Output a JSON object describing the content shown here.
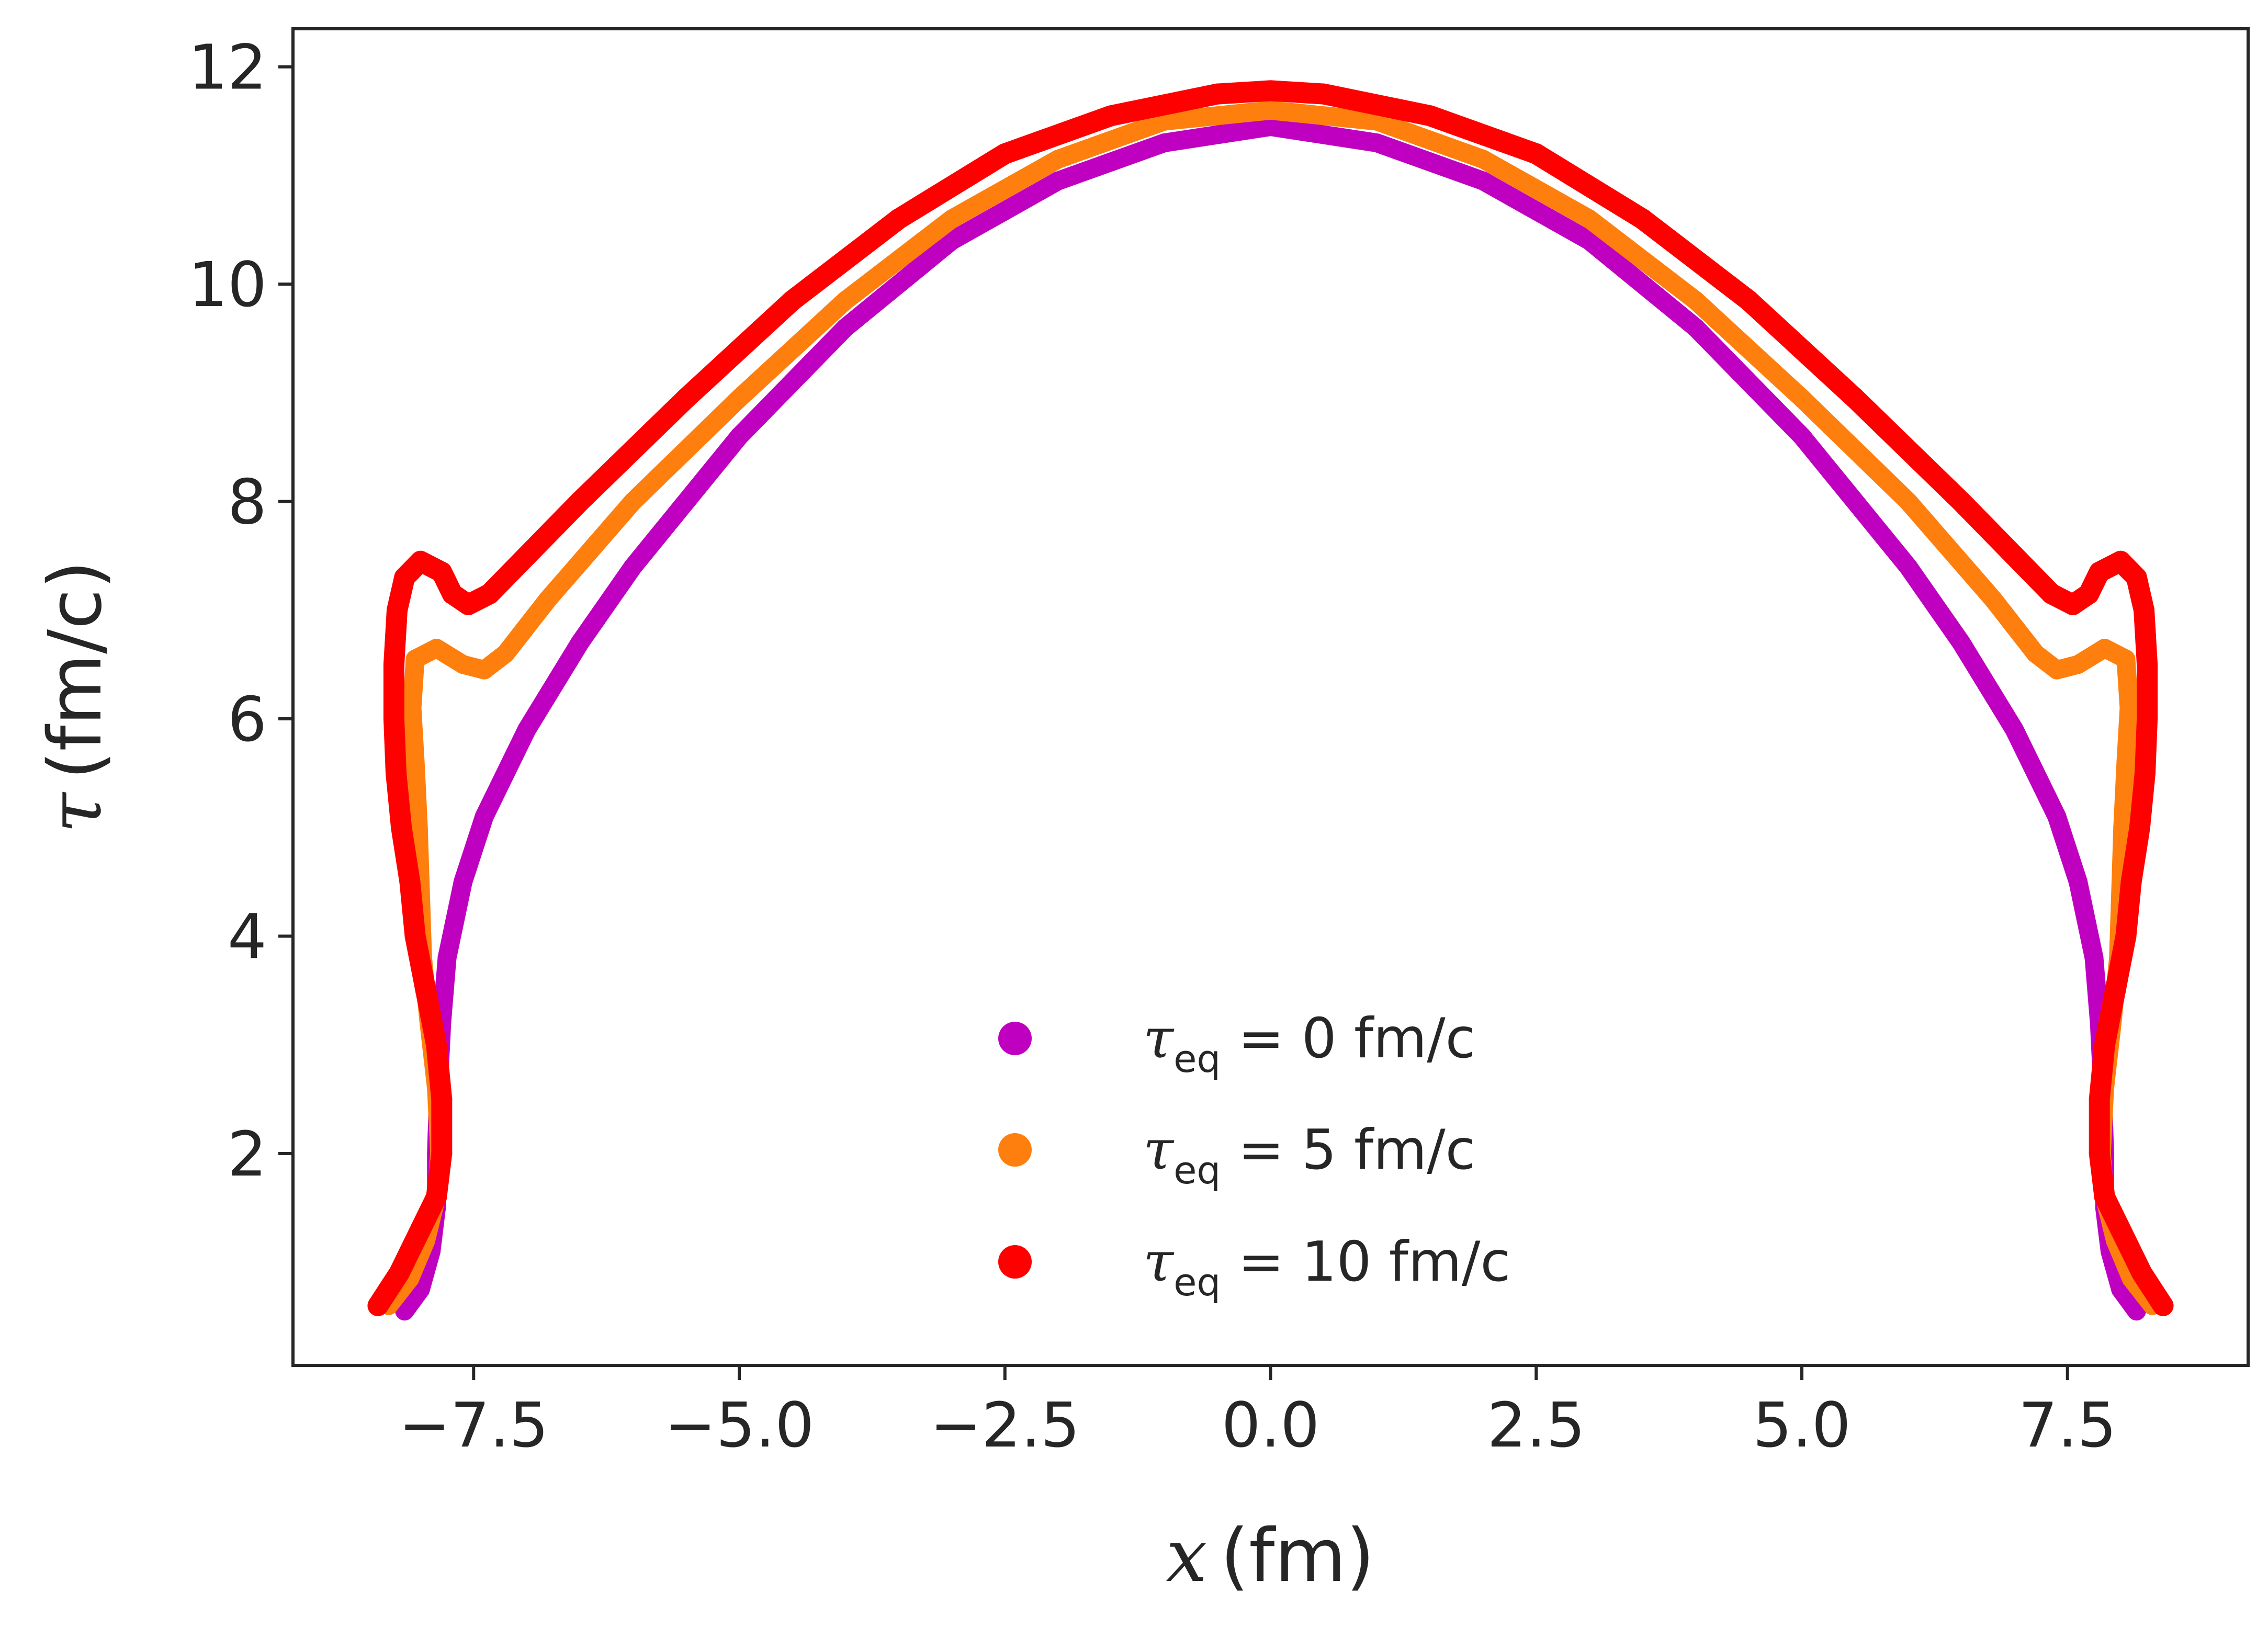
{
  "chart_data": {
    "type": "scatter",
    "title": "",
    "xlabel": {
      "symbol": "x",
      "unit": "(fm)"
    },
    "ylabel": {
      "symbol": "τ",
      "unit": "(fm/c)"
    },
    "xlim": [
      -9.2,
      9.2
    ],
    "ylim": [
      0.05,
      12.35
    ],
    "xticks": [
      -7.5,
      -5.0,
      -2.5,
      0.0,
      2.5,
      5.0,
      7.5
    ],
    "xtick_labels": [
      "−7.5",
      "−5.0",
      "−2.5",
      "0.0",
      "2.5",
      "5.0",
      "7.5"
    ],
    "yticks": [
      2,
      4,
      6,
      8,
      10,
      12
    ],
    "ytick_labels": [
      "2",
      "4",
      "6",
      "8",
      "10",
      "12"
    ],
    "grid": false,
    "legend_position": "bottom-center",
    "series": [
      {
        "name": "τeq = 0 fm/c",
        "legend_symbol": "τ",
        "legend_sub": "eq",
        "legend_rest": " = 0 fm/c",
        "color": "#c000c0",
        "points": [
          [
            -8.15,
            0.55
          ],
          [
            -8.0,
            0.75
          ],
          [
            -7.9,
            1.1
          ],
          [
            -7.85,
            1.5
          ],
          [
            -7.85,
            2.0
          ],
          [
            -7.83,
            2.6
          ],
          [
            -7.8,
            3.2
          ],
          [
            -7.75,
            3.8
          ],
          [
            -7.6,
            4.5
          ],
          [
            -7.4,
            5.1
          ],
          [
            -7.0,
            5.9
          ],
          [
            -6.5,
            6.7
          ],
          [
            -6.0,
            7.4
          ],
          [
            -5.0,
            8.6
          ],
          [
            -4.0,
            9.6
          ],
          [
            -3.0,
            10.4
          ],
          [
            -2.0,
            10.95
          ],
          [
            -1.0,
            11.3
          ],
          [
            0.0,
            11.45
          ],
          [
            1.0,
            11.3
          ],
          [
            2.0,
            10.95
          ],
          [
            3.0,
            10.4
          ],
          [
            4.0,
            9.6
          ],
          [
            5.0,
            8.6
          ],
          [
            6.0,
            7.4
          ],
          [
            6.5,
            6.7
          ],
          [
            7.0,
            5.9
          ],
          [
            7.4,
            5.1
          ],
          [
            7.6,
            4.5
          ],
          [
            7.75,
            3.8
          ],
          [
            7.8,
            3.2
          ],
          [
            7.83,
            2.6
          ],
          [
            7.85,
            2.0
          ],
          [
            7.85,
            1.5
          ],
          [
            7.9,
            1.1
          ],
          [
            8.0,
            0.75
          ],
          [
            8.15,
            0.55
          ]
        ]
      },
      {
        "name": "τeq = 5 fm/c",
        "legend_symbol": "τ",
        "legend_sub": "eq",
        "legend_rest": " = 5 fm/c",
        "color": "#ff7f0e",
        "points": [
          [
            -8.3,
            0.6
          ],
          [
            -8.1,
            0.85
          ],
          [
            -7.95,
            1.2
          ],
          [
            -7.85,
            1.6
          ],
          [
            -7.82,
            2.0
          ],
          [
            -7.85,
            2.6
          ],
          [
            -7.92,
            3.2
          ],
          [
            -7.98,
            3.8
          ],
          [
            -8.0,
            4.4
          ],
          [
            -8.02,
            5.0
          ],
          [
            -8.05,
            5.6
          ],
          [
            -8.08,
            6.1
          ],
          [
            -8.05,
            6.55
          ],
          [
            -7.85,
            6.65
          ],
          [
            -7.6,
            6.5
          ],
          [
            -7.4,
            6.45
          ],
          [
            -7.2,
            6.6
          ],
          [
            -6.8,
            7.1
          ],
          [
            -6.0,
            8.0
          ],
          [
            -5.0,
            8.95
          ],
          [
            -4.0,
            9.85
          ],
          [
            -3.0,
            10.6
          ],
          [
            -2.0,
            11.15
          ],
          [
            -1.0,
            11.5
          ],
          [
            0.0,
            11.6
          ],
          [
            1.0,
            11.5
          ],
          [
            2.0,
            11.15
          ],
          [
            3.0,
            10.6
          ],
          [
            4.0,
            9.85
          ],
          [
            5.0,
            8.95
          ],
          [
            6.0,
            8.0
          ],
          [
            6.8,
            7.1
          ],
          [
            7.2,
            6.6
          ],
          [
            7.4,
            6.45
          ],
          [
            7.6,
            6.5
          ],
          [
            7.85,
            6.65
          ],
          [
            8.05,
            6.55
          ],
          [
            8.08,
            6.1
          ],
          [
            8.05,
            5.6
          ],
          [
            8.02,
            5.0
          ],
          [
            8.0,
            4.4
          ],
          [
            7.98,
            3.8
          ],
          [
            7.92,
            3.2
          ],
          [
            7.85,
            2.6
          ],
          [
            7.82,
            2.0
          ],
          [
            7.85,
            1.6
          ],
          [
            7.95,
            1.2
          ],
          [
            8.1,
            0.85
          ],
          [
            8.3,
            0.6
          ]
        ]
      },
      {
        "name": "τeq = 10 fm/c",
        "legend_symbol": "τ",
        "legend_sub": "eq",
        "legend_rest": " = 10 fm/c",
        "color": "#ff0000",
        "points": [
          [
            -8.4,
            0.6
          ],
          [
            -8.2,
            0.9
          ],
          [
            -8.0,
            1.3
          ],
          [
            -7.85,
            1.6
          ],
          [
            -7.8,
            2.0
          ],
          [
            -7.8,
            2.5
          ],
          [
            -7.85,
            3.0
          ],
          [
            -7.95,
            3.5
          ],
          [
            -8.05,
            4.0
          ],
          [
            -8.1,
            4.5
          ],
          [
            -8.18,
            5.0
          ],
          [
            -8.23,
            5.5
          ],
          [
            -8.25,
            6.0
          ],
          [
            -8.25,
            6.5
          ],
          [
            -8.22,
            7.0
          ],
          [
            -8.15,
            7.3
          ],
          [
            -8.0,
            7.45
          ],
          [
            -7.8,
            7.35
          ],
          [
            -7.7,
            7.15
          ],
          [
            -7.55,
            7.05
          ],
          [
            -7.35,
            7.15
          ],
          [
            -7.0,
            7.5
          ],
          [
            -6.5,
            8.0
          ],
          [
            -5.5,
            8.95
          ],
          [
            -4.5,
            9.85
          ],
          [
            -3.5,
            10.6
          ],
          [
            -2.5,
            11.2
          ],
          [
            -1.5,
            11.55
          ],
          [
            -0.5,
            11.75
          ],
          [
            0.0,
            11.78
          ],
          [
            0.5,
            11.75
          ],
          [
            1.5,
            11.55
          ],
          [
            2.5,
            11.2
          ],
          [
            3.5,
            10.6
          ],
          [
            4.5,
            9.85
          ],
          [
            5.5,
            8.95
          ],
          [
            6.5,
            8.0
          ],
          [
            7.0,
            7.5
          ],
          [
            7.35,
            7.15
          ],
          [
            7.55,
            7.05
          ],
          [
            7.7,
            7.15
          ],
          [
            7.8,
            7.35
          ],
          [
            8.0,
            7.45
          ],
          [
            8.15,
            7.3
          ],
          [
            8.22,
            7.0
          ],
          [
            8.25,
            6.5
          ],
          [
            8.25,
            6.0
          ],
          [
            8.23,
            5.5
          ],
          [
            8.18,
            5.0
          ],
          [
            8.1,
            4.5
          ],
          [
            8.05,
            4.0
          ],
          [
            7.95,
            3.5
          ],
          [
            7.85,
            3.0
          ],
          [
            7.8,
            2.5
          ],
          [
            7.8,
            2.0
          ],
          [
            7.85,
            1.6
          ],
          [
            8.0,
            1.3
          ],
          [
            8.2,
            0.9
          ],
          [
            8.4,
            0.6
          ]
        ]
      }
    ]
  }
}
